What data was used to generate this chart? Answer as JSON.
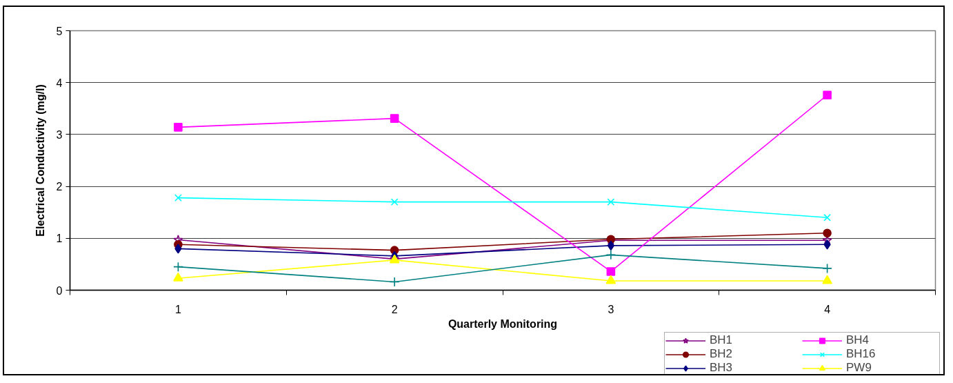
{
  "chart_data": {
    "type": "line",
    "xlabel": "Quarterly Monitoring",
    "ylabel": "Electrical Conductivity (mg/l)",
    "categories": [
      "1",
      "2",
      "3",
      "4"
    ],
    "ylim": [
      0,
      5
    ],
    "yticks": [
      0,
      1,
      2,
      3,
      4,
      5
    ],
    "grid": "y",
    "legend": "bottom right",
    "line_style": "solid",
    "series": [
      {
        "name": "BH1",
        "color": "#800080",
        "marker": "star",
        "values": [
          0.97,
          0.6,
          0.96,
          0.96
        ]
      },
      {
        "name": "BH2",
        "color": "#800000",
        "marker": "circle",
        "values": [
          0.88,
          0.77,
          0.98,
          1.1
        ]
      },
      {
        "name": "BH3",
        "color": "#000080",
        "marker": "diamond",
        "values": [
          0.8,
          0.66,
          0.86,
          0.88
        ]
      },
      {
        "name": "BH4",
        "color": "#ff00ff",
        "marker": "square",
        "values": [
          3.14,
          3.31,
          0.36,
          3.76
        ]
      },
      {
        "name": "BH16",
        "color": "#00ffff",
        "marker": "x",
        "values": [
          1.78,
          1.7,
          1.7,
          1.4
        ]
      },
      {
        "name": "PW9",
        "color": "#ffff00",
        "marker": "triangle",
        "values": [
          0.23,
          0.58,
          0.18,
          0.18
        ]
      },
      {
        "color": "#008080",
        "marker": "cross",
        "values": [
          0.45,
          0.16,
          0.68,
          0.42
        ]
      }
    ]
  }
}
